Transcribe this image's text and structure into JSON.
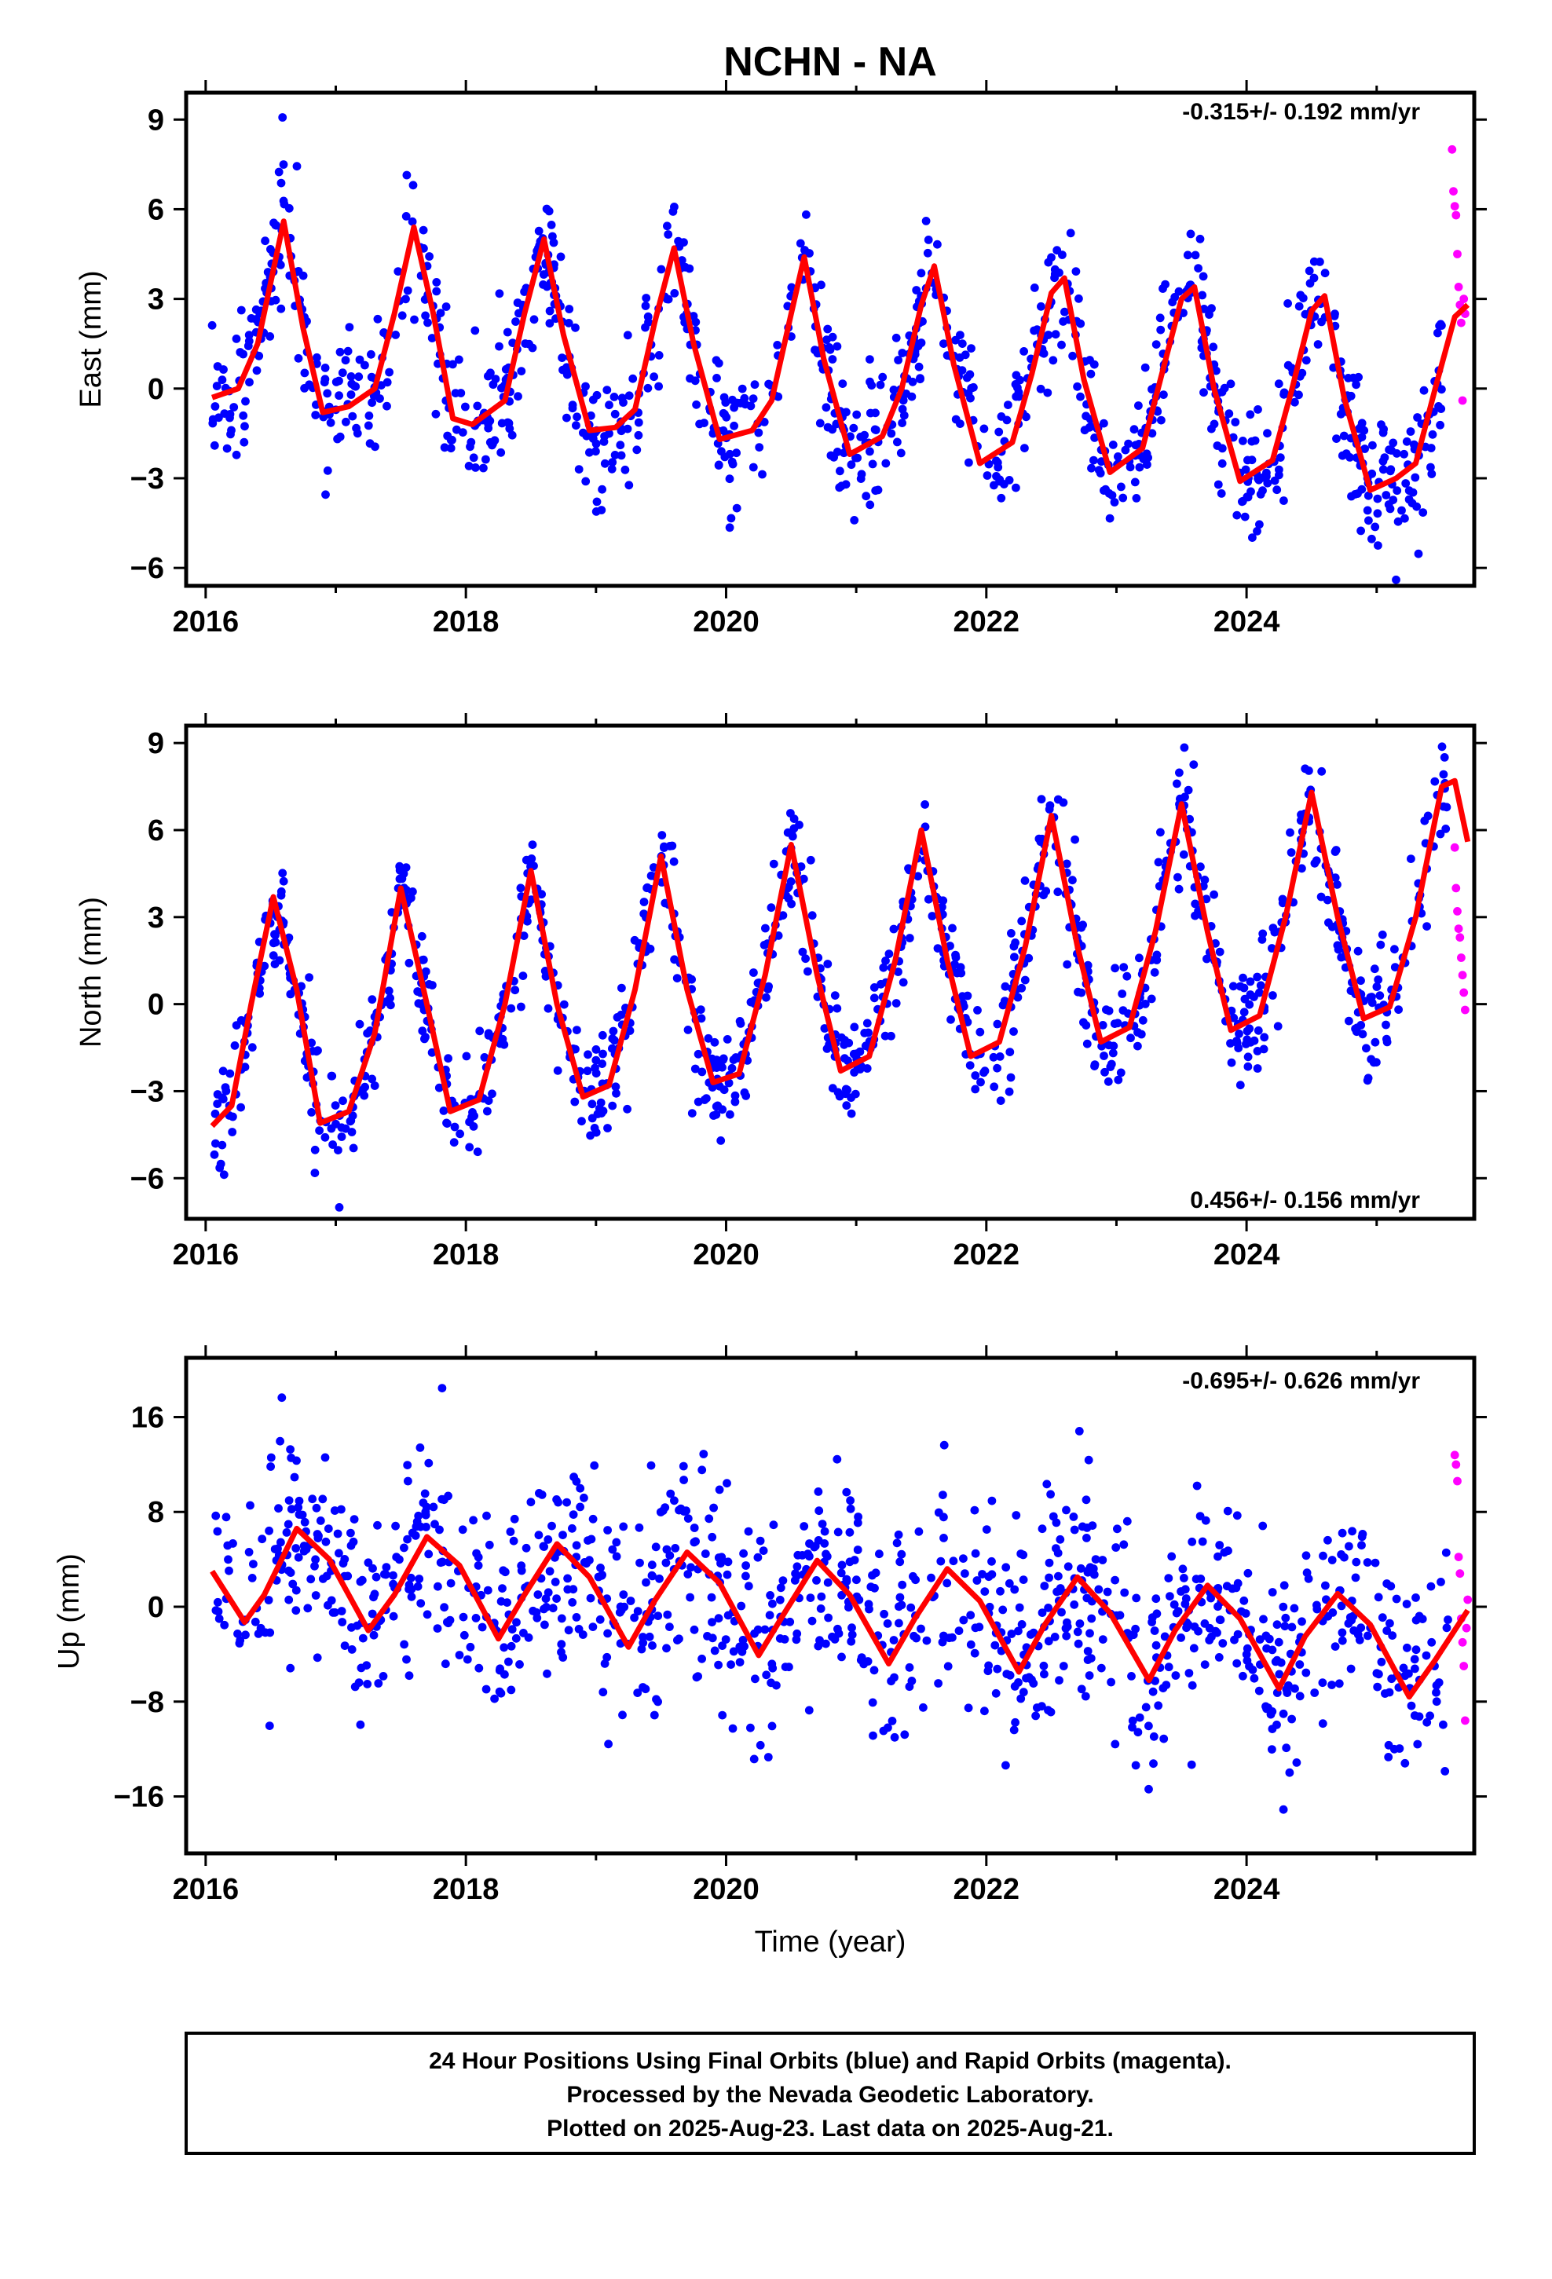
{
  "title": "NCHN - NA",
  "xlabel": "Time (year)",
  "footer": {
    "line1": "24 Hour Positions Using Final Orbits (blue) and Rapid Orbits (magenta).",
    "line2": "Processed by the Nevada Geodetic Laboratory.",
    "line3": "Plotted on 2025-Aug-23. Last data on 2025-Aug-21."
  },
  "colors": {
    "final": "#0000ff",
    "rapid": "#ff00ff",
    "model": "#ff0000",
    "frame": "#000000"
  },
  "chart_data": [
    {
      "type": "scatter",
      "panel": "east",
      "ylabel": "East (mm)",
      "rate_label": "-0.315+/- 0.192 mm/yr",
      "rate_position": "top-right",
      "xlim": [
        2015.85,
        2025.75
      ],
      "ylim": [
        -6.6,
        9.9
      ],
      "xticks": [
        2016,
        2018,
        2020,
        2022,
        2024
      ],
      "yticks": [
        -6,
        -3,
        0,
        3,
        6,
        9
      ],
      "grid": false,
      "model_curve": [
        [
          2016.05,
          -0.3
        ],
        [
          2016.25,
          0.0
        ],
        [
          2016.4,
          1.5
        ],
        [
          2016.6,
          5.6
        ],
        [
          2016.75,
          2.0
        ],
        [
          2016.9,
          -0.8
        ],
        [
          2017.1,
          -0.6
        ],
        [
          2017.3,
          0.0
        ],
        [
          2017.45,
          2.5
        ],
        [
          2017.6,
          5.4
        ],
        [
          2017.75,
          2.5
        ],
        [
          2017.9,
          -1.0
        ],
        [
          2018.05,
          -1.2
        ],
        [
          2018.3,
          -0.4
        ],
        [
          2018.45,
          2.5
        ],
        [
          2018.6,
          5.0
        ],
        [
          2018.75,
          1.8
        ],
        [
          2018.95,
          -1.4
        ],
        [
          2019.15,
          -1.3
        ],
        [
          2019.3,
          -0.7
        ],
        [
          2019.45,
          2.2
        ],
        [
          2019.6,
          4.7
        ],
        [
          2019.75,
          1.5
        ],
        [
          2019.95,
          -1.7
        ],
        [
          2020.2,
          -1.4
        ],
        [
          2020.35,
          -0.4
        ],
        [
          2020.5,
          2.5
        ],
        [
          2020.6,
          4.4
        ],
        [
          2020.75,
          1.0
        ],
        [
          2020.95,
          -2.2
        ],
        [
          2021.2,
          -1.6
        ],
        [
          2021.35,
          0.0
        ],
        [
          2021.5,
          2.8
        ],
        [
          2021.6,
          4.1
        ],
        [
          2021.75,
          0.8
        ],
        [
          2021.95,
          -2.5
        ],
        [
          2022.2,
          -1.8
        ],
        [
          2022.35,
          0.5
        ],
        [
          2022.5,
          3.2
        ],
        [
          2022.6,
          3.7
        ],
        [
          2022.75,
          0.3
        ],
        [
          2022.95,
          -2.8
        ],
        [
          2023.2,
          -2.0
        ],
        [
          2023.35,
          0.5
        ],
        [
          2023.5,
          3.0
        ],
        [
          2023.6,
          3.4
        ],
        [
          2023.75,
          0.0
        ],
        [
          2023.95,
          -3.1
        ],
        [
          2024.2,
          -2.4
        ],
        [
          2024.35,
          0.0
        ],
        [
          2024.5,
          2.6
        ],
        [
          2024.6,
          3.1
        ],
        [
          2024.75,
          -0.3
        ],
        [
          2024.95,
          -3.4
        ],
        [
          2025.15,
          -3.0
        ],
        [
          2025.3,
          -2.5
        ],
        [
          2025.45,
          0.0
        ],
        [
          2025.6,
          2.4
        ],
        [
          2025.7,
          2.8
        ]
      ],
      "final_points": {
        "start": 2016.05,
        "end": 2025.5,
        "count": 1050,
        "scatter_sd": 1.2,
        "seed": 11
      },
      "rapid_points": [
        [
          2025.58,
          8.0
        ],
        [
          2025.59,
          6.6
        ],
        [
          2025.6,
          6.1
        ],
        [
          2025.61,
          5.8
        ],
        [
          2025.62,
          4.5
        ],
        [
          2025.63,
          3.4
        ],
        [
          2025.64,
          2.8
        ],
        [
          2025.65,
          2.2
        ],
        [
          2025.66,
          -0.4
        ],
        [
          2025.67,
          3.0
        ],
        [
          2025.68,
          2.5
        ]
      ]
    },
    {
      "type": "scatter",
      "panel": "north",
      "ylabel": "North (mm)",
      "rate_label": "0.456+/- 0.156 mm/yr",
      "rate_position": "bottom-right",
      "xlim": [
        2015.85,
        2025.75
      ],
      "ylim": [
        -7.4,
        9.6
      ],
      "xticks": [
        2016,
        2018,
        2020,
        2022,
        2024
      ],
      "yticks": [
        -6,
        -3,
        0,
        3,
        6,
        9
      ],
      "grid": false,
      "model_curve": [
        [
          2016.05,
          -4.2
        ],
        [
          2016.2,
          -3.5
        ],
        [
          2016.35,
          0.0
        ],
        [
          2016.52,
          3.7
        ],
        [
          2016.7,
          0.5
        ],
        [
          2016.88,
          -4.1
        ],
        [
          2017.1,
          -3.7
        ],
        [
          2017.3,
          -1.0
        ],
        [
          2017.5,
          4.0
        ],
        [
          2017.7,
          0.0
        ],
        [
          2017.88,
          -3.7
        ],
        [
          2018.1,
          -3.3
        ],
        [
          2018.3,
          0.0
        ],
        [
          2018.5,
          4.6
        ],
        [
          2018.7,
          0.0
        ],
        [
          2018.9,
          -3.2
        ],
        [
          2019.1,
          -2.8
        ],
        [
          2019.3,
          0.5
        ],
        [
          2019.5,
          5.1
        ],
        [
          2019.7,
          0.5
        ],
        [
          2019.9,
          -2.7
        ],
        [
          2020.1,
          -2.4
        ],
        [
          2020.3,
          1.0
        ],
        [
          2020.5,
          5.5
        ],
        [
          2020.7,
          1.0
        ],
        [
          2020.88,
          -2.3
        ],
        [
          2021.1,
          -1.8
        ],
        [
          2021.3,
          1.5
        ],
        [
          2021.5,
          6.0
        ],
        [
          2021.7,
          1.5
        ],
        [
          2021.88,
          -1.8
        ],
        [
          2022.1,
          -1.3
        ],
        [
          2022.3,
          2.0
        ],
        [
          2022.5,
          6.5
        ],
        [
          2022.7,
          2.0
        ],
        [
          2022.88,
          -1.3
        ],
        [
          2023.1,
          -0.8
        ],
        [
          2023.3,
          2.5
        ],
        [
          2023.5,
          6.9
        ],
        [
          2023.7,
          2.5
        ],
        [
          2023.88,
          -0.9
        ],
        [
          2024.1,
          -0.4
        ],
        [
          2024.3,
          3.0
        ],
        [
          2024.5,
          7.3
        ],
        [
          2024.7,
          3.0
        ],
        [
          2024.9,
          -0.5
        ],
        [
          2025.1,
          -0.1
        ],
        [
          2025.3,
          3.0
        ],
        [
          2025.5,
          7.5
        ],
        [
          2025.6,
          7.7
        ],
        [
          2025.7,
          5.6
        ]
      ],
      "final_points": {
        "start": 2016.05,
        "end": 2025.55,
        "count": 1050,
        "scatter_sd": 1.0,
        "seed": 23
      },
      "rapid_points": [
        [
          2025.6,
          5.4
        ],
        [
          2025.61,
          4.0
        ],
        [
          2025.62,
          3.2
        ],
        [
          2025.63,
          2.6
        ],
        [
          2025.64,
          2.3
        ],
        [
          2025.65,
          1.6
        ],
        [
          2025.66,
          1.0
        ],
        [
          2025.67,
          0.4
        ],
        [
          2025.68,
          -0.2
        ]
      ]
    },
    {
      "type": "scatter",
      "panel": "up",
      "ylabel": "Up (mm)",
      "rate_label": "-0.695+/- 0.626 mm/yr",
      "rate_position": "top-right",
      "xlim": [
        2015.85,
        2025.75
      ],
      "ylim": [
        -20.8,
        21.0
      ],
      "xticks": [
        2016,
        2018,
        2020,
        2022,
        2024
      ],
      "yticks": [
        -16,
        -8,
        0,
        8,
        16
      ],
      "grid": false,
      "model_curve": [
        [
          2016.05,
          3.0
        ],
        [
          2016.3,
          -1.3
        ],
        [
          2016.45,
          1.0
        ],
        [
          2016.7,
          6.6
        ],
        [
          2016.95,
          4.0
        ],
        [
          2017.25,
          -2.0
        ],
        [
          2017.45,
          1.0
        ],
        [
          2017.7,
          5.9
        ],
        [
          2017.95,
          3.5
        ],
        [
          2018.25,
          -2.7
        ],
        [
          2018.45,
          1.0
        ],
        [
          2018.7,
          5.3
        ],
        [
          2018.95,
          2.5
        ],
        [
          2019.25,
          -3.4
        ],
        [
          2019.45,
          0.5
        ],
        [
          2019.7,
          4.6
        ],
        [
          2019.95,
          2.0
        ],
        [
          2020.25,
          -4.1
        ],
        [
          2020.45,
          -0.5
        ],
        [
          2020.7,
          3.9
        ],
        [
          2020.95,
          1.0
        ],
        [
          2021.25,
          -4.8
        ],
        [
          2021.45,
          -1.0
        ],
        [
          2021.7,
          3.2
        ],
        [
          2021.95,
          0.5
        ],
        [
          2022.25,
          -5.5
        ],
        [
          2022.45,
          -1.5
        ],
        [
          2022.7,
          2.5
        ],
        [
          2022.95,
          -0.5
        ],
        [
          2023.25,
          -6.2
        ],
        [
          2023.45,
          -2.0
        ],
        [
          2023.7,
          1.8
        ],
        [
          2023.95,
          -1.0
        ],
        [
          2024.25,
          -6.9
        ],
        [
          2024.45,
          -2.5
        ],
        [
          2024.7,
          1.1
        ],
        [
          2024.95,
          -1.5
        ],
        [
          2025.25,
          -7.6
        ],
        [
          2025.45,
          -4.5
        ],
        [
          2025.7,
          -0.3
        ]
      ],
      "final_points": {
        "start": 2016.05,
        "end": 2025.55,
        "count": 1050,
        "scatter_sd": 4.5,
        "seed": 37
      },
      "rapid_points": [
        [
          2025.6,
          12.8
        ],
        [
          2025.61,
          12.0
        ],
        [
          2025.62,
          10.6
        ],
        [
          2025.63,
          4.2
        ],
        [
          2025.64,
          2.8
        ],
        [
          2025.65,
          -1.0
        ],
        [
          2025.66,
          -3.0
        ],
        [
          2025.67,
          -5.0
        ],
        [
          2025.68,
          -9.6
        ],
        [
          2025.69,
          -1.8
        ],
        [
          2025.7,
          0.6
        ]
      ]
    }
  ]
}
